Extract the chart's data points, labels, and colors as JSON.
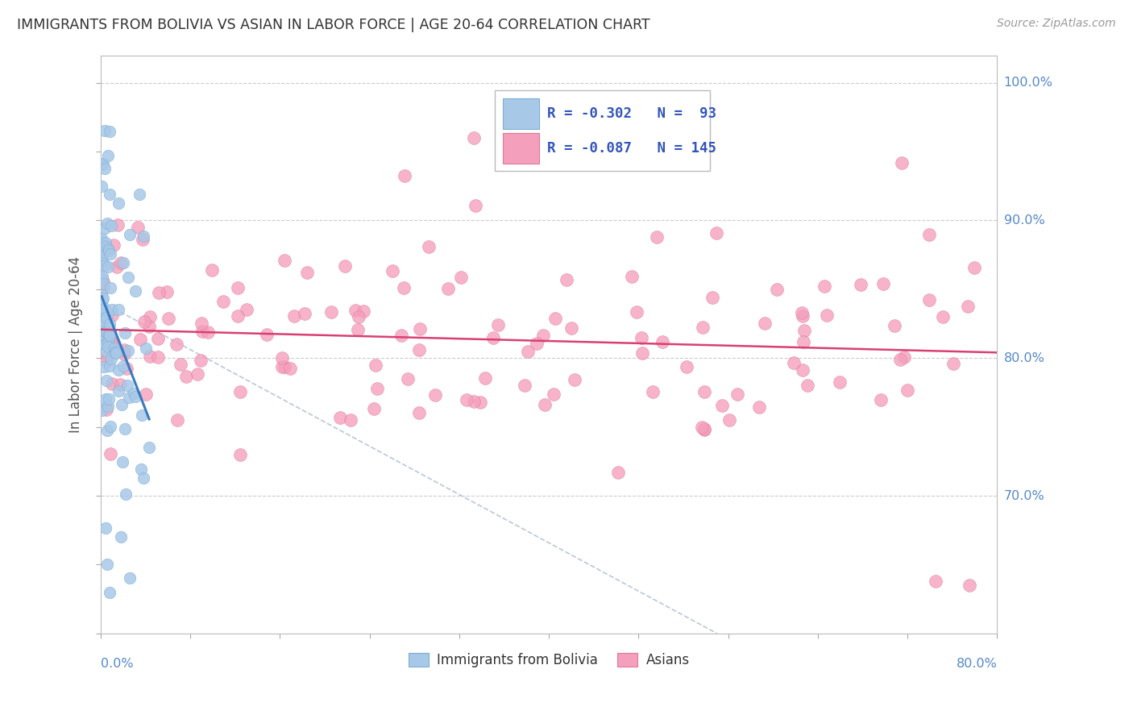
{
  "title": "IMMIGRANTS FROM BOLIVIA VS ASIAN IN LABOR FORCE | AGE 20-64 CORRELATION CHART",
  "source": "Source: ZipAtlas.com",
  "ylabel": "In Labor Force | Age 20-64",
  "xmin": 0.0,
  "xmax": 0.8,
  "ymin": 0.6,
  "ymax": 1.02,
  "bolivia_color": "#a8c8e8",
  "bolivia_edge": "#7aafd4",
  "pink_color": "#f4a0bc",
  "pink_edge": "#e07898",
  "trend_bolivia_color": "#3a7abf",
  "trend_asian_color": "#d94070",
  "diag_color": "#b8c8d8",
  "background_color": "#ffffff",
  "title_color": "#333333",
  "axis_label_color": "#5588cc",
  "legend_text_color": "#3355bb",
  "ylabel_color": "#555555"
}
